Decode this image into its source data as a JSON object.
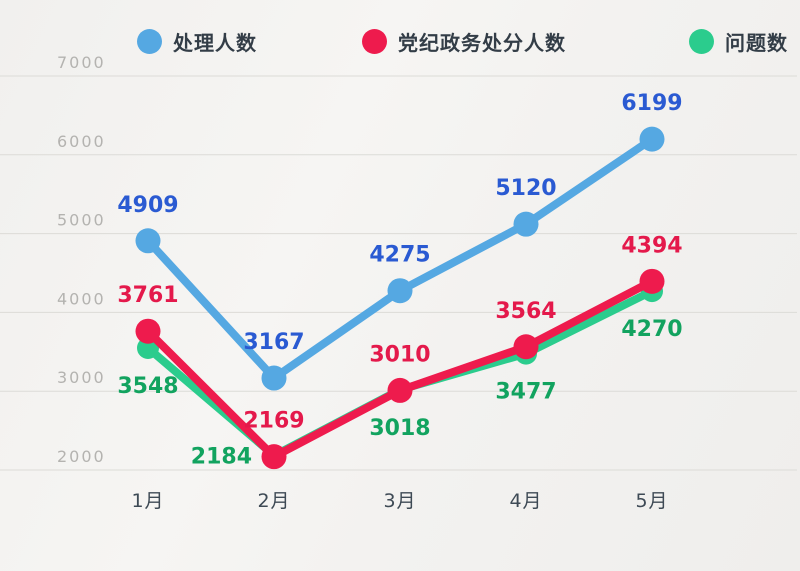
{
  "chart_data": {
    "type": "line",
    "title": "",
    "categories": [
      "1月",
      "2月",
      "3月",
      "4月",
      "5月"
    ],
    "series": [
      {
        "name": "处理人数",
        "color": "#55a8e2",
        "label_color": "#2a5ad2",
        "values": [
          4909,
          3167,
          4275,
          5120,
          6199
        ],
        "label_position": "above"
      },
      {
        "name": "党纪政务处分人数",
        "color": "#ee1b4d",
        "label_color": "#e4194b",
        "values": [
          3761,
          2169,
          3010,
          3564,
          4394
        ],
        "label_position": "above"
      },
      {
        "name": "问题数",
        "color": "#2bcc8d",
        "label_color": "#12a35f",
        "values": [
          3548,
          2184,
          3018,
          3477,
          4270
        ],
        "label_position": "below",
        "label_overrides": {
          "1": "left"
        }
      }
    ],
    "xlabel": "",
    "ylabel": "",
    "ylim": [
      2000,
      7000
    ],
    "yticks": [
      2000,
      3000,
      4000,
      5000,
      6000,
      7000
    ],
    "grid": true,
    "legend_position": "top",
    "axis_colors": {
      "ytick": "#b4b3b0",
      "xtick": "#3e4a55",
      "gridline": "#dcdbd7"
    }
  }
}
